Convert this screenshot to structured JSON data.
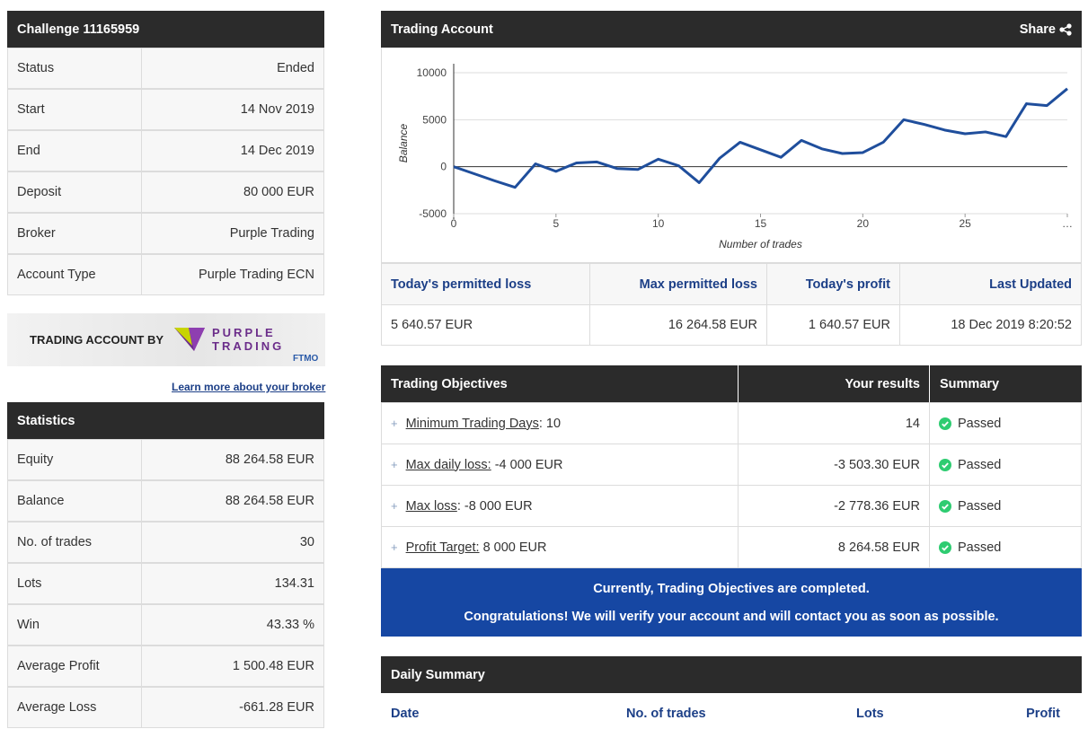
{
  "challenge": {
    "title": "Challenge 11165959",
    "rows": [
      [
        "Status",
        "Ended"
      ],
      [
        "Start",
        "14 Nov 2019"
      ],
      [
        "End",
        "14 Dec 2019"
      ],
      [
        "Deposit",
        "80 000 EUR"
      ],
      [
        "Broker",
        "Purple Trading"
      ],
      [
        "Account Type",
        "Purple Trading ECN"
      ]
    ]
  },
  "banner": {
    "text": "TRADING ACCOUNT BY",
    "brand_line1": "PURPLE",
    "brand_line2": "TRADING",
    "badge": "FTMO"
  },
  "broker_link": "Learn more about your broker",
  "statistics": {
    "title": "Statistics",
    "rows": [
      [
        "Equity",
        "88 264.58 EUR"
      ],
      [
        "Balance",
        "88 264.58 EUR"
      ],
      [
        "No. of trades",
        "30"
      ],
      [
        "Lots",
        "134.31"
      ],
      [
        "Win",
        "43.33 %"
      ],
      [
        "Average Profit",
        "1 500.48 EUR"
      ],
      [
        "Average Loss",
        "-661.28 EUR"
      ]
    ]
  },
  "trading_account": {
    "title": "Trading Account",
    "share": "Share",
    "chart": {
      "type": "line",
      "x_label": "Number of trades",
      "y_label": "Balance",
      "color": "#1f4e9c",
      "x": [
        0,
        1,
        2,
        3,
        4,
        5,
        6,
        7,
        8,
        9,
        10,
        11,
        12,
        13,
        14,
        15,
        16,
        17,
        18,
        19,
        20,
        21,
        22,
        23,
        24,
        25,
        26,
        27,
        28,
        29,
        30
      ],
      "values": [
        0,
        -750,
        -1500,
        -2200,
        300,
        -500,
        400,
        500,
        -200,
        -300,
        800,
        100,
        -1700,
        900,
        2600,
        1800,
        1000,
        2800,
        1900,
        1400,
        1500,
        2600,
        5000,
        4500,
        3900,
        3500,
        3700,
        3200,
        6700,
        6500,
        8300
      ],
      "xlim": [
        0,
        30
      ],
      "ylim": [
        -5000,
        10000
      ],
      "xticks": [
        0,
        5,
        10,
        15,
        20,
        25,
        {
          "value": 30,
          "label": "…"
        }
      ],
      "yticks": [
        -5000,
        0,
        5000,
        10000
      ],
      "grid": true
    },
    "summary": {
      "headers": [
        "Today's permitted loss",
        "Max permitted loss",
        "Today's profit",
        "Last Updated"
      ],
      "values": [
        "5 640.57 EUR",
        "16 264.58 EUR",
        "1 640.57 EUR",
        "18 Dec 2019 8:20:52"
      ]
    }
  },
  "objectives": {
    "headers": [
      "Trading Objectives",
      "Your results",
      "Summary"
    ],
    "rows": [
      {
        "label": "Minimum Trading Days",
        "target": ": 10",
        "result": "14",
        "status": "Passed"
      },
      {
        "label": "Max daily loss:",
        "target": " -4 000 EUR",
        "result": "-3 503.30 EUR",
        "status": "Passed"
      },
      {
        "label": "Max loss",
        "target": ": -8 000 EUR",
        "result": "-2 778.36 EUR",
        "status": "Passed"
      },
      {
        "label": "Profit Target:",
        "target": " 8 000 EUR",
        "result": "8 264.58 EUR",
        "status": "Passed"
      }
    ]
  },
  "notice": {
    "line1": "Currently, Trading Objectives are completed.",
    "line2": "Congratulations! We will verify your account and will contact you as soon as possible."
  },
  "daily_summary": {
    "title": "Daily Summary",
    "headers": [
      "Date",
      "No. of trades",
      "Lots",
      "Profit"
    ]
  }
}
